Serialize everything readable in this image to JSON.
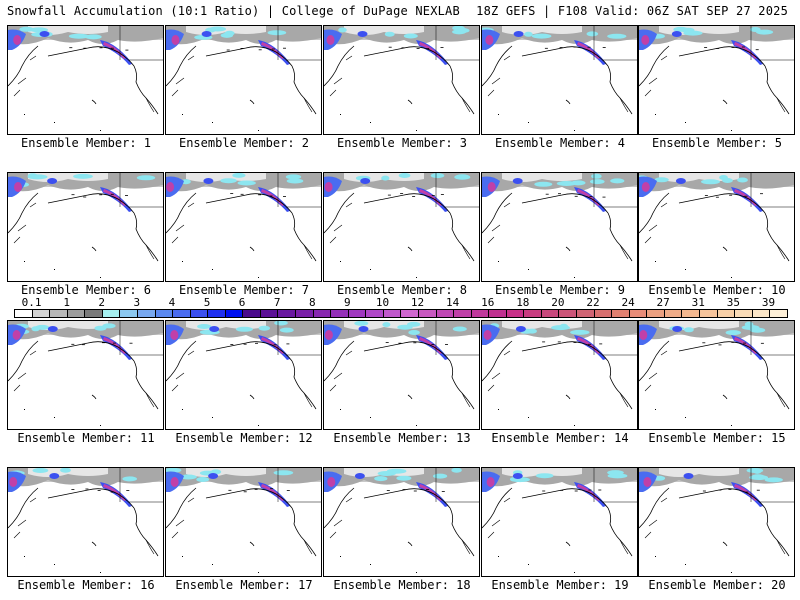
{
  "header": {
    "title_left": "Snowfall Accumulation (10:1 Ratio) | College of DuPage NEXLAB",
    "title_right": "18Z GEFS | F108 Valid: 06Z SAT SEP 27 2025"
  },
  "panels": [
    {
      "label": "Ensemble Member: 1"
    },
    {
      "label": "Ensemble Member: 2"
    },
    {
      "label": "Ensemble Member: 3"
    },
    {
      "label": "Ensemble Member: 4"
    },
    {
      "label": "Ensemble Member: 5"
    },
    {
      "label": "Ensemble Member: 6"
    },
    {
      "label": "Ensemble Member: 7"
    },
    {
      "label": "Ensemble Member: 8"
    },
    {
      "label": "Ensemble Member: 9"
    },
    {
      "label": "Ensemble Member: 10"
    },
    {
      "label": "Ensemble Member: 11"
    },
    {
      "label": "Ensemble Member: 12"
    },
    {
      "label": "Ensemble Member: 13"
    },
    {
      "label": "Ensemble Member: 14"
    },
    {
      "label": "Ensemble Member: 15"
    },
    {
      "label": "Ensemble Member: 16"
    },
    {
      "label": "Ensemble Member: 17"
    },
    {
      "label": "Ensemble Member: 18"
    },
    {
      "label": "Ensemble Member: 19"
    },
    {
      "label": "Ensemble Member: 20"
    }
  ],
  "colorbar": {
    "labels": [
      "0.1",
      "1",
      "2",
      "3",
      "4",
      "5",
      "6",
      "7",
      "8",
      "9",
      "10",
      "12",
      "14",
      "16",
      "18",
      "20",
      "22",
      "24",
      "27",
      "31",
      "35",
      "39"
    ],
    "colors": [
      "#ffffff",
      "#d4d4d4",
      "#b8b8b8",
      "#9c9c9c",
      "#7a7a7a",
      "#a6f0f0",
      "#8cc8f0",
      "#78a8f0",
      "#5a88f0",
      "#4a6cf0",
      "#3c50f0",
      "#2030f0",
      "#0010f0",
      "#4a0a8c",
      "#5c1096",
      "#6a18a0",
      "#7a20a8",
      "#8828b0",
      "#9430b8",
      "#a038c0",
      "#b048c8",
      "#c058cc",
      "#d068d0",
      "#c858c0",
      "#c048b4",
      "#c040a8",
      "#c0389c",
      "#c03090",
      "#c83088",
      "#c83c80",
      "#c8487c",
      "#cc5478",
      "#d06474",
      "#d87070",
      "#e08070",
      "#e88c78",
      "#eca080",
      "#f0ac88",
      "#f4b890",
      "#f6c49c",
      "#f8d0a8",
      "#fadcb8",
      "#fce6c8",
      "#fef0d8"
    ]
  }
}
